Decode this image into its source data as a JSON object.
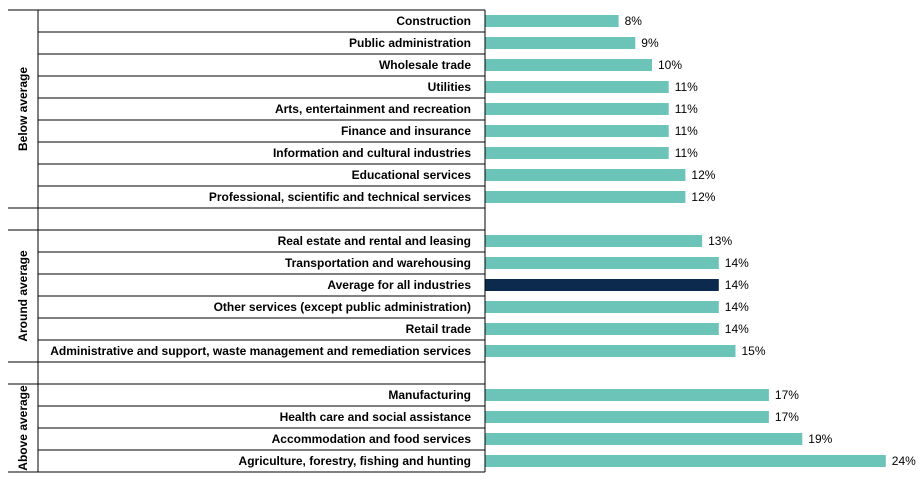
{
  "chart_data": {
    "type": "bar",
    "orientation": "horizontal",
    "colors": {
      "bar": "#6cc4b8",
      "highlight": "#0b2a4e"
    },
    "groups": [
      {
        "label": "Below average",
        "categories": [
          "Construction",
          "Public administration",
          "Wholesale trade",
          "Utilities",
          "Arts, entertainment and recreation",
          "Finance and insurance",
          "Information and cultural industries",
          "Educational services",
          "Professional, scientific and technical services"
        ],
        "values": [
          8,
          9,
          10,
          11,
          11,
          11,
          11,
          12,
          12
        ],
        "labels": [
          "8%",
          "9%",
          "10%",
          "11%",
          "11%",
          "11%",
          "11%",
          "12%",
          "12%"
        ]
      },
      {
        "label": "Around average",
        "categories": [
          "Real estate and rental and leasing",
          "Transportation and warehousing",
          "Average for all industries",
          "Other services (except public administration)",
          "Retail trade",
          "Administrative and support, waste management and remediation services"
        ],
        "values": [
          13,
          14,
          14,
          14,
          14,
          15
        ],
        "labels": [
          "13%",
          "14%",
          "14%",
          "14%",
          "14%",
          "15%"
        ],
        "highlight": "Average for all industries"
      },
      {
        "label": "Above average",
        "categories": [
          "Manufacturing",
          "Health care and social assistance",
          "Accommodation and food services",
          "Agriculture, forestry, fishing and hunting"
        ],
        "values": [
          17,
          17,
          19,
          24
        ],
        "labels": [
          "17%",
          "17%",
          "19%",
          "24%"
        ]
      }
    ],
    "xlim": [
      0,
      24
    ]
  }
}
